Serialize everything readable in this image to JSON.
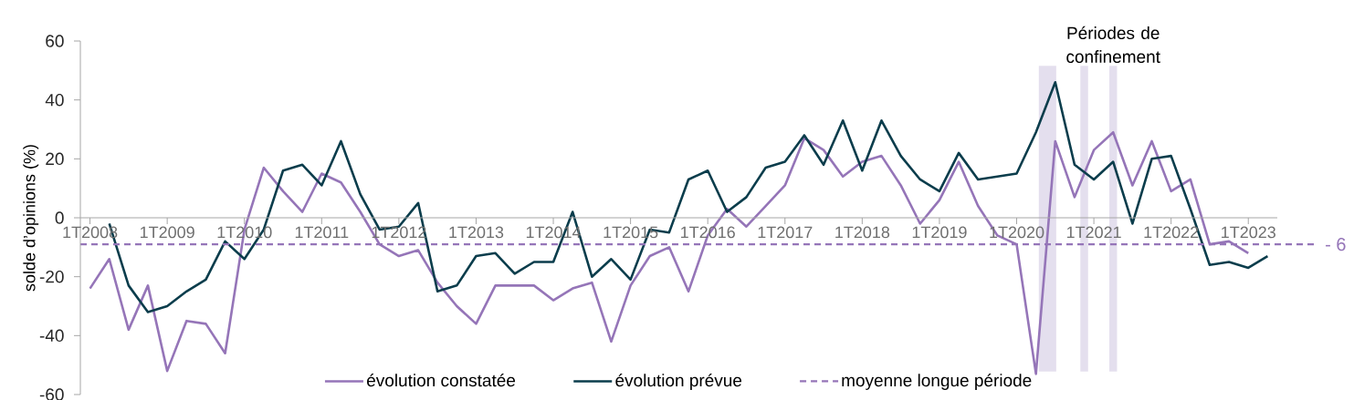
{
  "chart_data": {
    "type": "line",
    "ylabel": "solde d’opinions (%)",
    "categories": [
      "1T2008",
      null,
      null,
      null,
      "1T2009",
      null,
      null,
      null,
      "1T2010",
      null,
      null,
      null,
      "1T2011",
      null,
      null,
      null,
      "1T2012",
      null,
      null,
      null,
      "1T2013",
      null,
      null,
      null,
      "1T2014",
      null,
      null,
      null,
      "1T2015",
      null,
      null,
      null,
      "1T2016",
      null,
      null,
      null,
      "1T2017",
      null,
      null,
      null,
      "1T2018",
      null,
      null,
      null,
      "1T2019",
      null,
      null,
      null,
      "1T2020",
      null,
      null,
      null,
      "1T2021",
      null,
      null,
      null,
      "1T2022",
      null,
      null,
      null,
      "1T2023",
      null
    ],
    "series": [
      {
        "name": "évolution constatée",
        "color": "#9575b8",
        "values": [
          -24,
          -14,
          -38,
          -23,
          -52,
          -35,
          -36,
          -46,
          -4,
          17,
          9,
          2,
          15,
          12,
          2,
          -9,
          -13,
          -11,
          -22,
          -30,
          -36,
          -23,
          -23,
          -23,
          -28,
          -24,
          -22,
          -42,
          -23,
          -13,
          -10,
          -25,
          -6,
          3,
          -3,
          4,
          11,
          27,
          23,
          14,
          19,
          21,
          11,
          -2,
          6,
          19,
          4,
          -6,
          -9,
          -53,
          26,
          7,
          23,
          29,
          11,
          26,
          9,
          13,
          -9,
          -8,
          -12,
          null
        ]
      },
      {
        "name": "évolution prévue",
        "color": "#0b3d4c",
        "values": [
          null,
          -2,
          -23,
          -32,
          -30,
          -25,
          -21,
          -8,
          -14,
          -4,
          16,
          18,
          11,
          26,
          8,
          -4,
          -3,
          5,
          -25,
          -23,
          -13,
          -12,
          -19,
          -15,
          -15,
          2,
          -20,
          -14,
          -21,
          -4,
          -5,
          13,
          16,
          2,
          7,
          17,
          19,
          28,
          18,
          33,
          16,
          33,
          21,
          13,
          9,
          22,
          13,
          14,
          15,
          29,
          46,
          18,
          13,
          19,
          -2,
          20,
          21,
          3,
          -16,
          -15,
          -17,
          -13
        ]
      }
    ],
    "ylim": [
      -60,
      60
    ],
    "yticks": [
      -60,
      -40,
      -20,
      0,
      20,
      40,
      60
    ],
    "ref_lines": [
      {
        "axis": "y",
        "value": -9,
        "label": "moyenne longue période",
        "color": "#9575b8",
        "line_style": "dashed"
      }
    ],
    "annotations": [
      "Périodes de confinement",
      "- 6"
    ],
    "legend": "bottom",
    "marker": "none",
    "line_style": "solid"
  }
}
